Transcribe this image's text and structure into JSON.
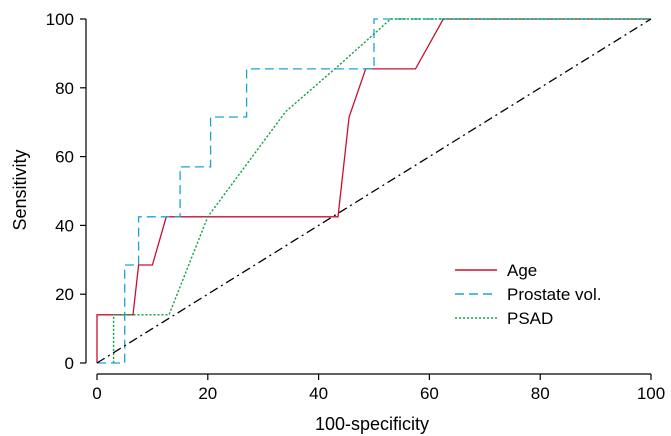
{
  "chart_data": {
    "type": "line",
    "title": "",
    "xlabel": "100-specificity",
    "ylabel": "Sensitivity",
    "xlim": [
      0,
      100
    ],
    "ylim": [
      0,
      100
    ],
    "xticks": [
      0,
      20,
      40,
      60,
      80,
      100
    ],
    "yticks": [
      0,
      20,
      40,
      60,
      80,
      100
    ],
    "grid": false,
    "legend_position": "bottom-right",
    "series": [
      {
        "name": "Age",
        "color": "#c8102e",
        "style": "solid",
        "x": [
          0,
          0,
          6.5,
          7.5,
          7.5,
          10,
          12.5,
          43.5,
          45.5,
          48.5,
          57.5,
          62.5,
          100
        ],
        "y": [
          0,
          14,
          14,
          28.5,
          28.5,
          28.5,
          42.5,
          42.5,
          71.5,
          85.5,
          85.5,
          100,
          100
        ]
      },
      {
        "name": "Prostate vol.",
        "color": "#1aa3d9",
        "style": "dashed",
        "x": [
          0,
          5,
          5,
          7.5,
          7.5,
          15,
          15,
          20.5,
          20.5,
          27,
          27,
          50,
          50,
          100
        ],
        "y": [
          0,
          0,
          28.5,
          28.5,
          42.5,
          42.5,
          57,
          57,
          71.5,
          71.5,
          85.5,
          85.5,
          100,
          100
        ]
      },
      {
        "name": "PSAD",
        "color": "#16a34a",
        "style": "dotted",
        "x": [
          3,
          3,
          13,
          20,
          34,
          44,
          53,
          100
        ],
        "y": [
          0,
          14,
          14,
          42.5,
          73,
          87,
          100,
          100
        ]
      },
      {
        "name": "",
        "color": "#000000",
        "style": "dashdot",
        "x": [
          0,
          100
        ],
        "y": [
          0,
          100
        ]
      }
    ]
  }
}
